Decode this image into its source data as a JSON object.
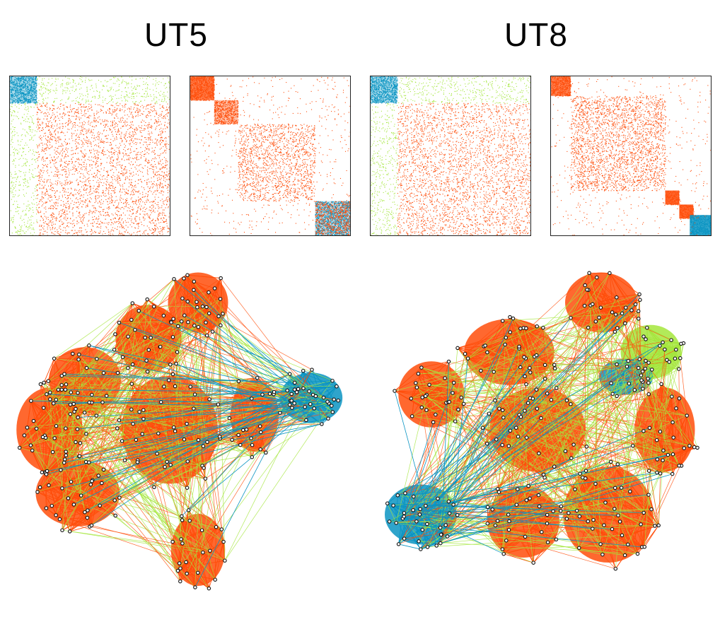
{
  "panels": [
    {
      "title": "UT5"
    },
    {
      "title": "UT8"
    }
  ],
  "colors": {
    "community_orange": "#ff4d0a",
    "community_blue": "#0a94c2",
    "cross_green": "#a4e63c",
    "node_fill": "#ffffff",
    "node_stroke": "#111111"
  },
  "icons": [
    "adjacency-matrix",
    "network-graph",
    "node-circle"
  ]
}
